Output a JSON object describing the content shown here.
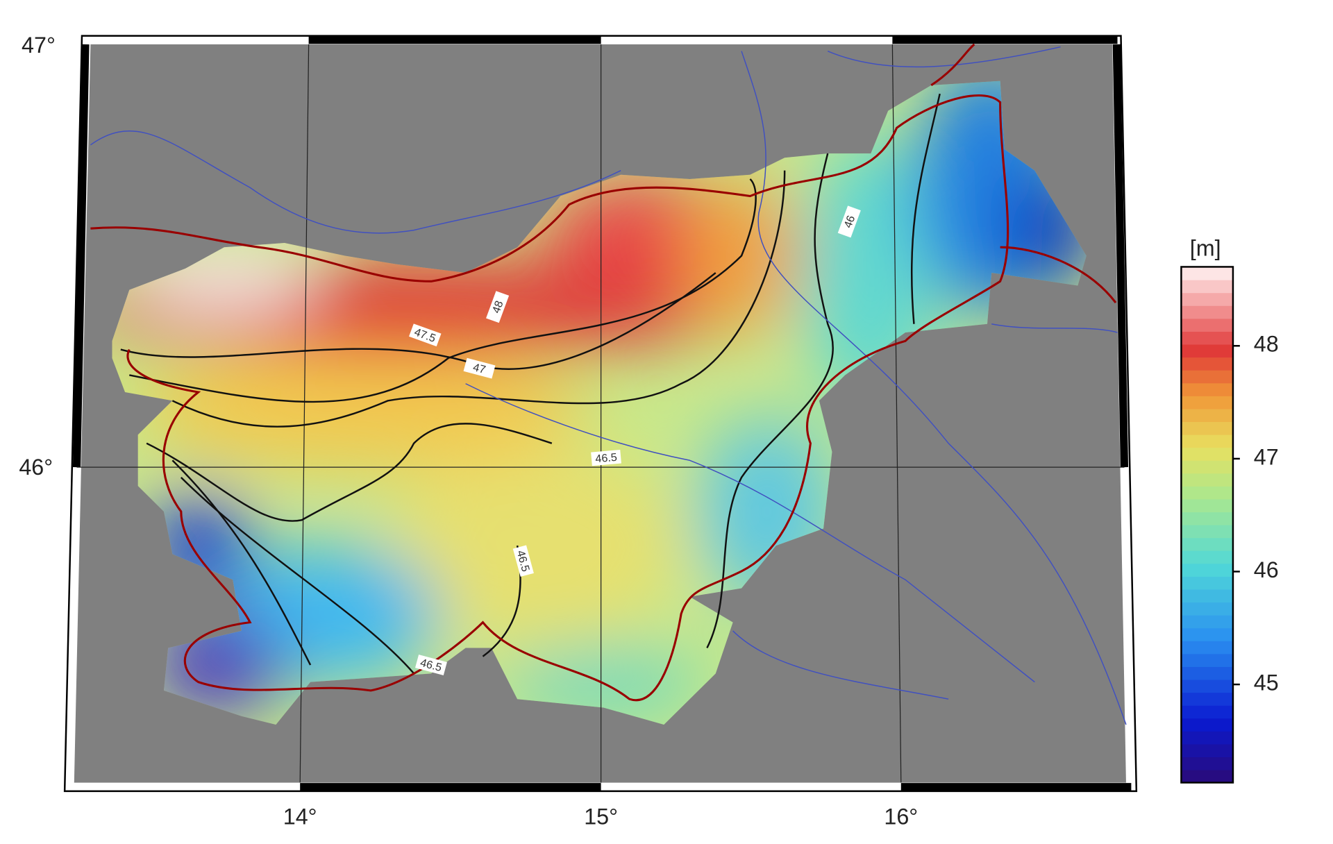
{
  "map": {
    "lat_labels": [
      "47°",
      "46°"
    ],
    "lon_labels": [
      "14°",
      "15°",
      "16°"
    ],
    "contour_labels": [
      "48",
      "47.5",
      "47",
      "46.5",
      "46",
      "46.5",
      "46.5"
    ]
  },
  "colorbar": {
    "title": "[m]",
    "range": [
      44.13,
      48.7
    ],
    "ticks": [
      45,
      46,
      47,
      48
    ]
  }
}
